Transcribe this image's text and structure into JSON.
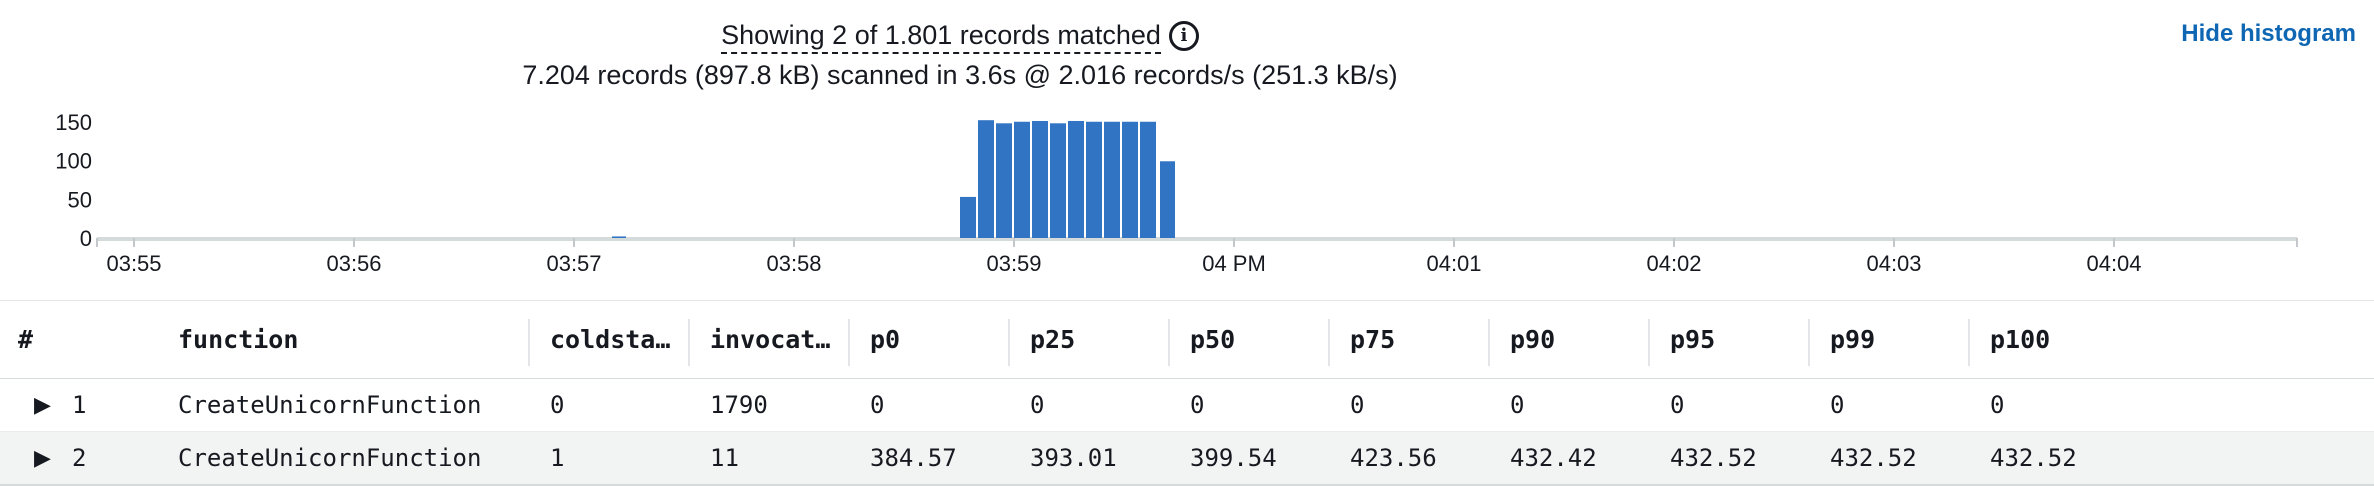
{
  "summary": {
    "line1": "Showing 2 of 1.801 records matched",
    "line2": "7.204 records (897.8 kB) scanned in 3.6s @ 2.016 records/s (251.3 kB/s)",
    "info_icon": "info-circle-icon"
  },
  "hide_histogram": "Hide histogram",
  "chart_data": {
    "type": "bar",
    "x_ticks": [
      "03:55",
      "03:56",
      "03:57",
      "03:58",
      "03:59",
      "04 PM",
      "04:01",
      "04:02",
      "04:03",
      "04:04"
    ],
    "y_ticks": [
      "150",
      "100",
      "50",
      "0"
    ],
    "ylim": [
      0,
      160
    ],
    "bar_color": "#3174c4",
    "values": [
      2,
      53,
      152,
      148,
      150,
      151,
      148,
      151,
      150,
      150,
      150,
      150,
      99
    ],
    "grid": false
  },
  "table": {
    "columns": [
      "#",
      "function",
      "coldsta…",
      "invocat…",
      "p0",
      "p25",
      "p50",
      "p75",
      "p90",
      "p95",
      "p99",
      "p100"
    ],
    "rows": [
      [
        "1",
        "CreateUnicornFunction",
        "0",
        "1790",
        "0",
        "0",
        "0",
        "0",
        "0",
        "0",
        "0",
        "0"
      ],
      [
        "2",
        "CreateUnicornFunction",
        "1",
        "11",
        "384.57",
        "393.01",
        "399.54",
        "423.56",
        "432.42",
        "432.52",
        "432.52",
        "432.52"
      ]
    ]
  }
}
